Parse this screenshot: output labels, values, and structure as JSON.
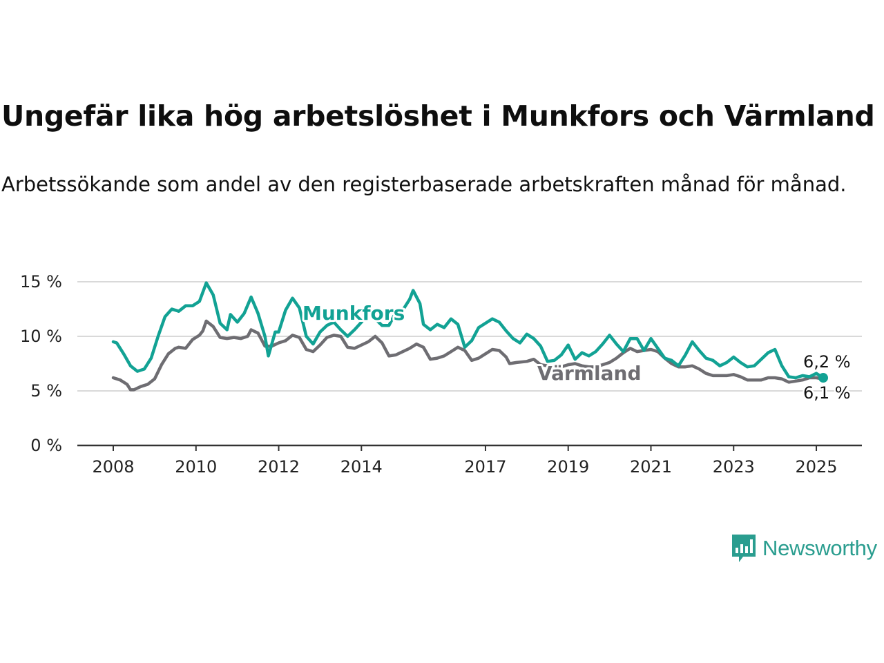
{
  "chart_data": {
    "type": "line",
    "title": "Ungefär lika hög arbetslöshet i Munkfors och Värmland",
    "subtitle": "Arbetssökande som andel av den registerbaserade arbetskraften månad för månad.",
    "xlabel": "",
    "ylabel": "",
    "ylim": [
      0,
      15
    ],
    "xlim": [
      "2008-01",
      "2025-04"
    ],
    "y_ticks": [
      {
        "value": 0,
        "label": "0 %"
      },
      {
        "value": 5,
        "label": "5 %"
      },
      {
        "value": 10,
        "label": "10 %"
      },
      {
        "value": 15,
        "label": "15 %"
      }
    ],
    "x_ticks": [
      {
        "value": "2008-01",
        "label": "2008"
      },
      {
        "value": "2010-01",
        "label": "2010"
      },
      {
        "value": "2012-01",
        "label": "2012"
      },
      {
        "value": "2014-01",
        "label": "2014"
      },
      {
        "value": "2017-01",
        "label": "2017"
      },
      {
        "value": "2019-01",
        "label": "2019"
      },
      {
        "value": "2021-01",
        "label": "2021"
      },
      {
        "value": "2023-01",
        "label": "2023"
      },
      {
        "value": "2025-01",
        "label": "2025"
      }
    ],
    "grid": true,
    "series": [
      {
        "name": "Värmland",
        "color": "#6e6d72",
        "end_label": "6,1 %",
        "points": [
          [
            "2008-01",
            6.2
          ],
          [
            "2008-03",
            6.0
          ],
          [
            "2008-05",
            5.6
          ],
          [
            "2008-06",
            5.1
          ],
          [
            "2008-07",
            5.1
          ],
          [
            "2008-09",
            5.4
          ],
          [
            "2008-11",
            5.6
          ],
          [
            "2009-01",
            6.1
          ],
          [
            "2009-03",
            7.4
          ],
          [
            "2009-05",
            8.4
          ],
          [
            "2009-07",
            8.9
          ],
          [
            "2009-08",
            9.0
          ],
          [
            "2009-10",
            8.9
          ],
          [
            "2009-12",
            9.7
          ],
          [
            "2010-02",
            10.1
          ],
          [
            "2010-03",
            10.5
          ],
          [
            "2010-04",
            11.4
          ],
          [
            "2010-06",
            10.9
          ],
          [
            "2010-08",
            9.9
          ],
          [
            "2010-10",
            9.8
          ],
          [
            "2010-12",
            9.9
          ],
          [
            "2011-02",
            9.8
          ],
          [
            "2011-04",
            10.0
          ],
          [
            "2011-05",
            10.6
          ],
          [
            "2011-07",
            10.3
          ],
          [
            "2011-09",
            9.1
          ],
          [
            "2011-11",
            9.1
          ],
          [
            "2012-01",
            9.4
          ],
          [
            "2012-03",
            9.6
          ],
          [
            "2012-05",
            10.1
          ],
          [
            "2012-07",
            9.9
          ],
          [
            "2012-09",
            8.8
          ],
          [
            "2012-11",
            8.6
          ],
          [
            "2013-01",
            9.2
          ],
          [
            "2013-03",
            9.9
          ],
          [
            "2013-05",
            10.1
          ],
          [
            "2013-07",
            10.0
          ],
          [
            "2013-09",
            9.0
          ],
          [
            "2013-11",
            8.9
          ],
          [
            "2014-01",
            9.2
          ],
          [
            "2014-03",
            9.5
          ],
          [
            "2014-05",
            10.0
          ],
          [
            "2014-07",
            9.4
          ],
          [
            "2014-09",
            8.2
          ],
          [
            "2014-11",
            8.3
          ],
          [
            "2015-01",
            8.6
          ],
          [
            "2015-03",
            8.9
          ],
          [
            "2015-05",
            9.3
          ],
          [
            "2015-07",
            9.0
          ],
          [
            "2015-09",
            7.9
          ],
          [
            "2015-11",
            8.0
          ],
          [
            "2016-01",
            8.2
          ],
          [
            "2016-03",
            8.6
          ],
          [
            "2016-05",
            9.0
          ],
          [
            "2016-07",
            8.7
          ],
          [
            "2016-09",
            7.8
          ],
          [
            "2016-11",
            8.0
          ],
          [
            "2017-01",
            8.4
          ],
          [
            "2017-03",
            8.8
          ],
          [
            "2017-05",
            8.7
          ],
          [
            "2017-07",
            8.1
          ],
          [
            "2017-08",
            7.5
          ],
          [
            "2017-10",
            7.6
          ],
          [
            "2018-01",
            7.7
          ],
          [
            "2018-03",
            7.9
          ],
          [
            "2018-05",
            7.4
          ],
          [
            "2018-07",
            7.3
          ],
          [
            "2018-09",
            7.2
          ],
          [
            "2018-11",
            7.2
          ],
          [
            "2019-01",
            7.4
          ],
          [
            "2019-03",
            7.5
          ],
          [
            "2019-05",
            7.3
          ],
          [
            "2019-07",
            7.2
          ],
          [
            "2019-09",
            7.2
          ],
          [
            "2019-11",
            7.4
          ],
          [
            "2020-01",
            7.6
          ],
          [
            "2020-03",
            8.0
          ],
          [
            "2020-05",
            8.5
          ],
          [
            "2020-07",
            8.9
          ],
          [
            "2020-09",
            8.6
          ],
          [
            "2020-11",
            8.7
          ],
          [
            "2021-01",
            8.8
          ],
          [
            "2021-03",
            8.6
          ],
          [
            "2021-05",
            8.0
          ],
          [
            "2021-07",
            7.5
          ],
          [
            "2021-09",
            7.2
          ],
          [
            "2021-11",
            7.2
          ],
          [
            "2022-01",
            7.3
          ],
          [
            "2022-03",
            7.0
          ],
          [
            "2022-05",
            6.6
          ],
          [
            "2022-07",
            6.4
          ],
          [
            "2022-09",
            6.4
          ],
          [
            "2022-11",
            6.4
          ],
          [
            "2023-01",
            6.5
          ],
          [
            "2023-03",
            6.3
          ],
          [
            "2023-05",
            6.0
          ],
          [
            "2023-07",
            6.0
          ],
          [
            "2023-09",
            6.0
          ],
          [
            "2023-11",
            6.2
          ],
          [
            "2024-01",
            6.2
          ],
          [
            "2024-03",
            6.1
          ],
          [
            "2024-05",
            5.8
          ],
          [
            "2024-07",
            5.9
          ],
          [
            "2024-09",
            6.0
          ],
          [
            "2024-11",
            6.2
          ],
          [
            "2025-01",
            6.2
          ],
          [
            "2025-03",
            6.1
          ]
        ]
      },
      {
        "name": "Munkfors",
        "color": "#12a294",
        "end_label": "6,2 %",
        "points": [
          [
            "2008-01",
            9.5
          ],
          [
            "2008-02",
            9.4
          ],
          [
            "2008-04",
            8.4
          ],
          [
            "2008-06",
            7.3
          ],
          [
            "2008-08",
            6.8
          ],
          [
            "2008-10",
            7.0
          ],
          [
            "2008-12",
            8.0
          ],
          [
            "2009-02",
            10.0
          ],
          [
            "2009-04",
            11.8
          ],
          [
            "2009-06",
            12.5
          ],
          [
            "2009-08",
            12.3
          ],
          [
            "2009-10",
            12.8
          ],
          [
            "2009-12",
            12.8
          ],
          [
            "2010-02",
            13.2
          ],
          [
            "2010-04",
            14.9
          ],
          [
            "2010-06",
            13.8
          ],
          [
            "2010-08",
            11.2
          ],
          [
            "2010-10",
            10.6
          ],
          [
            "2010-11",
            12.0
          ],
          [
            "2011-01",
            11.3
          ],
          [
            "2011-03",
            12.1
          ],
          [
            "2011-05",
            13.6
          ],
          [
            "2011-07",
            12.1
          ],
          [
            "2011-09",
            10.0
          ],
          [
            "2011-10",
            8.2
          ],
          [
            "2011-12",
            10.4
          ],
          [
            "2012-01",
            10.4
          ],
          [
            "2012-03",
            12.4
          ],
          [
            "2012-05",
            13.5
          ],
          [
            "2012-07",
            12.6
          ],
          [
            "2012-09",
            10.0
          ],
          [
            "2012-11",
            9.3
          ],
          [
            "2013-01",
            10.4
          ],
          [
            "2013-03",
            11.0
          ],
          [
            "2013-05",
            11.3
          ],
          [
            "2013-07",
            10.6
          ],
          [
            "2013-09",
            10.0
          ],
          [
            "2013-11",
            10.6
          ],
          [
            "2014-01",
            11.3
          ],
          [
            "2014-03",
            12.1
          ],
          [
            "2014-05",
            11.6
          ],
          [
            "2014-07",
            11.0
          ],
          [
            "2014-09",
            11.0
          ],
          [
            "2014-11",
            12.2
          ],
          [
            "2015-01",
            12.4
          ],
          [
            "2015-03",
            13.4
          ],
          [
            "2015-04",
            14.2
          ],
          [
            "2015-06",
            13.0
          ],
          [
            "2015-07",
            11.1
          ],
          [
            "2015-09",
            10.6
          ],
          [
            "2015-11",
            11.1
          ],
          [
            "2016-01",
            10.8
          ],
          [
            "2016-03",
            11.6
          ],
          [
            "2016-05",
            11.1
          ],
          [
            "2016-07",
            9.0
          ],
          [
            "2016-09",
            9.6
          ],
          [
            "2016-11",
            10.8
          ],
          [
            "2017-01",
            11.2
          ],
          [
            "2017-03",
            11.6
          ],
          [
            "2017-05",
            11.3
          ],
          [
            "2017-07",
            10.5
          ],
          [
            "2017-09",
            9.8
          ],
          [
            "2017-11",
            9.4
          ],
          [
            "2018-01",
            10.2
          ],
          [
            "2018-03",
            9.8
          ],
          [
            "2018-05",
            9.1
          ],
          [
            "2018-07",
            7.7
          ],
          [
            "2018-09",
            7.8
          ],
          [
            "2018-11",
            8.3
          ],
          [
            "2019-01",
            9.2
          ],
          [
            "2019-03",
            7.9
          ],
          [
            "2019-05",
            8.5
          ],
          [
            "2019-07",
            8.2
          ],
          [
            "2019-09",
            8.6
          ],
          [
            "2019-11",
            9.3
          ],
          [
            "2020-01",
            10.1
          ],
          [
            "2020-03",
            9.3
          ],
          [
            "2020-05",
            8.6
          ],
          [
            "2020-07",
            9.8
          ],
          [
            "2020-09",
            9.8
          ],
          [
            "2020-11",
            8.7
          ],
          [
            "2021-01",
            9.8
          ],
          [
            "2021-03",
            8.9
          ],
          [
            "2021-05",
            8.0
          ],
          [
            "2021-07",
            7.8
          ],
          [
            "2021-09",
            7.3
          ],
          [
            "2021-11",
            8.3
          ],
          [
            "2022-01",
            9.5
          ],
          [
            "2022-03",
            8.7
          ],
          [
            "2022-05",
            8.0
          ],
          [
            "2022-07",
            7.8
          ],
          [
            "2022-09",
            7.3
          ],
          [
            "2022-11",
            7.6
          ],
          [
            "2023-01",
            8.1
          ],
          [
            "2023-03",
            7.6
          ],
          [
            "2023-05",
            7.2
          ],
          [
            "2023-07",
            7.3
          ],
          [
            "2023-09",
            7.9
          ],
          [
            "2023-11",
            8.5
          ],
          [
            "2024-01",
            8.8
          ],
          [
            "2024-03",
            7.3
          ],
          [
            "2024-05",
            6.3
          ],
          [
            "2024-07",
            6.2
          ],
          [
            "2024-09",
            6.4
          ],
          [
            "2024-11",
            6.3
          ],
          [
            "2025-01",
            6.6
          ],
          [
            "2025-03",
            6.2
          ]
        ]
      }
    ]
  },
  "brand": {
    "name": "Newsworthy",
    "logo_icon": "newsworthy-logo-icon",
    "color": "#2a9d8f"
  }
}
